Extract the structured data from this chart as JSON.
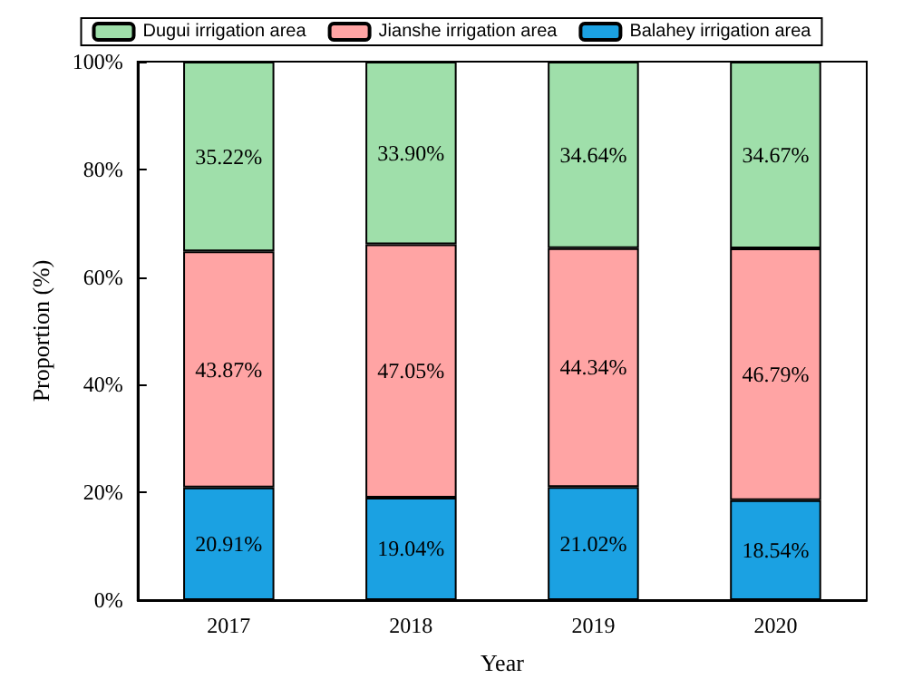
{
  "chart_data": {
    "type": "bar",
    "stacked": true,
    "xlabel": "Year",
    "ylabel": "Proportion (%)",
    "categories": [
      "2017",
      "2018",
      "2019",
      "2020"
    ],
    "series": [
      {
        "name": "Balahey irrigation area",
        "color": "#1ba1e2",
        "values": [
          20.91,
          19.04,
          21.02,
          18.54
        ],
        "value_labels": [
          "20.91%",
          "19.04%",
          "21.02%",
          "18.54%"
        ]
      },
      {
        "name": "Jianshe irrigation area",
        "color": "#ffa4a4",
        "values": [
          43.87,
          47.05,
          44.34,
          46.79
        ],
        "value_labels": [
          "43.87%",
          "47.05%",
          "44.34%",
          "46.79%"
        ]
      },
      {
        "name": "Dugui irrigation area",
        "color": "#9fdfaa",
        "values": [
          35.22,
          33.9,
          34.64,
          34.67
        ],
        "value_labels": [
          "35.22%",
          "33.90%",
          "34.64%",
          "34.67%"
        ]
      }
    ],
    "ylim": [
      0,
      100
    ],
    "yticks": [
      {
        "value": 0,
        "label": "0%"
      },
      {
        "value": 20,
        "label": "20%"
      },
      {
        "value": 40,
        "label": "40%"
      },
      {
        "value": 60,
        "label": "60%"
      },
      {
        "value": 80,
        "label": "80%"
      },
      {
        "value": 100,
        "label": "100%"
      }
    ],
    "legend": "top",
    "grid": false
  }
}
